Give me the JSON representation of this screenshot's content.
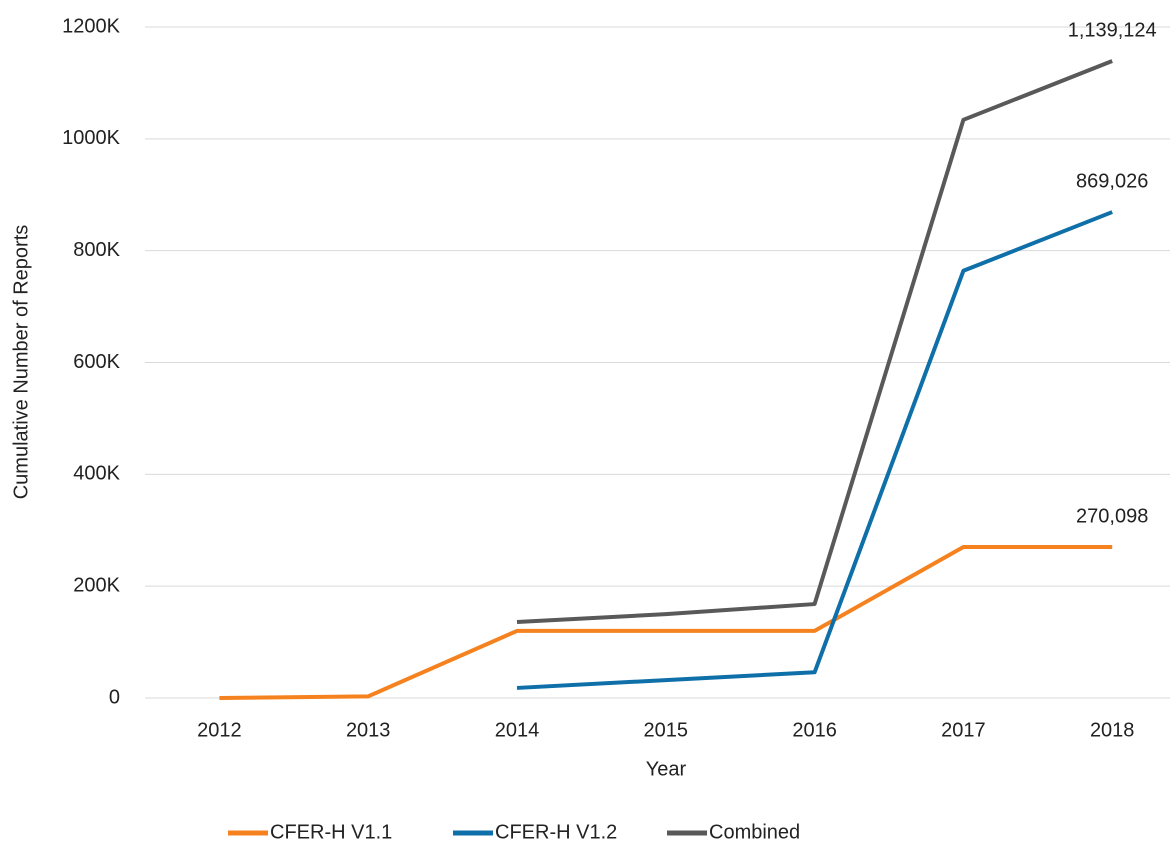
{
  "chart_data": {
    "type": "line",
    "x_label": "Year",
    "y_label": "Cumulative  Number  of Reports",
    "categories": [
      "2012",
      "2013",
      "2014",
      "2015",
      "2016",
      "2017",
      "2018"
    ],
    "series": [
      {
        "name": "CFER-H V1.1",
        "color": "#f5821f",
        "values": [
          0,
          3000,
          120000,
          120000,
          120000,
          270098,
          270098
        ],
        "value_labels": [
          null,
          null,
          null,
          null,
          null,
          null,
          "270,098"
        ]
      },
      {
        "name": "CFER-H V1.2",
        "color": "#0f6fa8",
        "values": [
          null,
          null,
          18000,
          32000,
          46000,
          764000,
          869026
        ],
        "value_labels": [
          null,
          null,
          null,
          null,
          null,
          null,
          "869,026"
        ]
      },
      {
        "name": "Combined",
        "color": "#595959",
        "values": [
          null,
          null,
          136000,
          150000,
          168000,
          1034000,
          1139124
        ],
        "value_labels": [
          null,
          null,
          null,
          null,
          null,
          null,
          "1,139,124"
        ]
      }
    ],
    "ylim": [
      0,
      1200000
    ],
    "yticks": [
      0,
      {
        "value": 200000,
        "label": "200K"
      },
      {
        "value": 400000,
        "label": "400K"
      },
      {
        "value": 600000,
        "label": "600K"
      },
      {
        "value": 800000,
        "label": "800K"
      },
      {
        "value": 1000000,
        "label": "1000K"
      },
      {
        "value": 1200000,
        "label": "1200K"
      }
    ],
    "grid": true,
    "legend": "bottom"
  }
}
